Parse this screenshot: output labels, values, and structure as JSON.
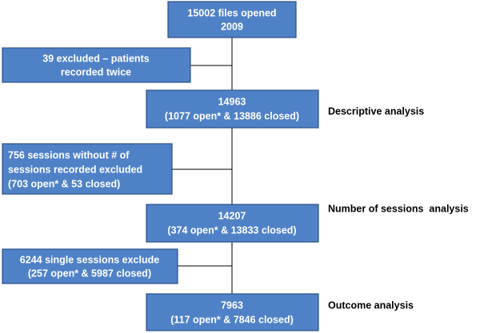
{
  "nodes": [
    {
      "lines": [
        "15002 files opened",
        "2009"
      ]
    },
    {
      "lines": [
        "39 excluded – patients",
        "recorded twice"
      ]
    },
    {
      "lines": [
        "14963",
        "(1077 open* & 13886 closed)"
      ]
    },
    {
      "lines": [
        "756 sessions without # of",
        "sessions recorded excluded",
        "(703 open* & 53 closed)"
      ]
    },
    {
      "lines": [
        "14207",
        "(374 open* & 13833 closed)"
      ]
    },
    {
      "lines": [
        "6244 single sessions exclude",
        "(257 open* & 5987 closed)"
      ]
    },
    {
      "lines": [
        "7963",
        "(117 open* & 7846 closed)"
      ]
    }
  ],
  "side_labels": [
    "Descriptive analysis",
    "Number of sessions  analysis",
    "Outcome analysis"
  ]
}
